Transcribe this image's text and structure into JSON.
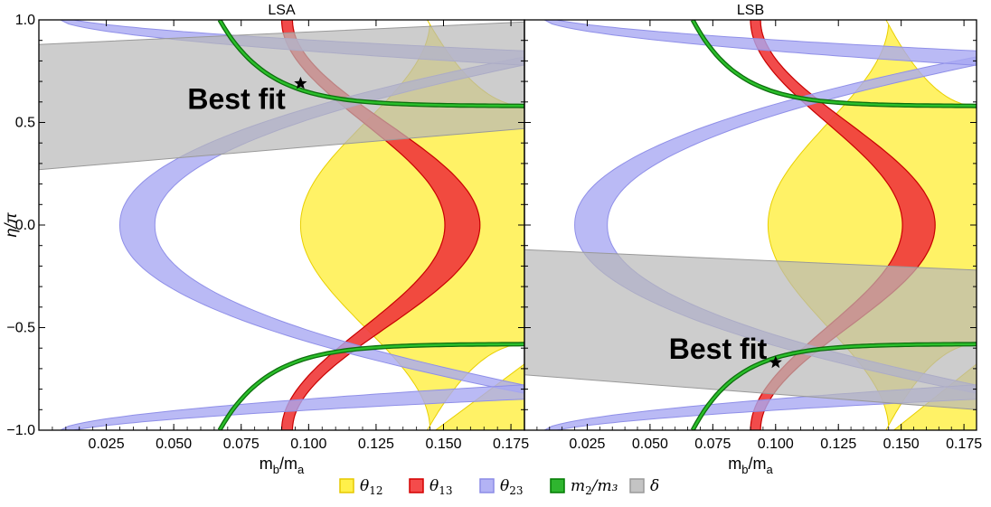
{
  "chart_data": [
    {
      "type": "area",
      "title": "LSA",
      "xlabel": "m_b/m_a",
      "ylabel": "η/π",
      "xlim": [
        0.0,
        0.18
      ],
      "ylim": [
        -1.0,
        1.0
      ],
      "xticks": [
        "0.025",
        "0.050",
        "0.075",
        "0.100",
        "0.125",
        "0.150",
        "0.175"
      ],
      "yticks": [
        "−1.0",
        "−0.5",
        "0.0",
        "0.5",
        "1.0"
      ],
      "annotation": "Best fit",
      "best_fit": {
        "x": 0.097,
        "y": 0.69
      },
      "regions": {
        "theta12": "yellow region right of x≈0.097–0.145, extending to x=0.18",
        "theta13": {
          "center_x_at_eta0": 0.157,
          "center_x_at_eta_pm1": 0.092,
          "width_x_min": 0.004,
          "width_x_max": 0.012
        },
        "theta23": "blue curved bands forming a C-shape with min x≈0.030 at η=0",
        "m2_over_m3": "green curves from (0.067,±1.0) asymptoting to η=±0.58 at x=0.18",
        "delta": {
          "left_top": 0.88,
          "left_bottom": 0.27,
          "right_top": 0.99,
          "right_bottom": 0.47
        }
      }
    },
    {
      "type": "area",
      "title": "LSB",
      "xlabel": "m_b/m_a",
      "ylabel": "",
      "xlim": [
        0.0,
        0.18
      ],
      "ylim": [
        -1.0,
        1.0
      ],
      "xticks": [
        "0.025",
        "0.050",
        "0.075",
        "0.100",
        "0.125",
        "0.150",
        "0.175"
      ],
      "annotation": "Best fit",
      "best_fit": {
        "x": 0.1,
        "y": -0.67
      },
      "regions": {
        "theta12": "yellow region right of x≈0.097–0.145, extending to x=0.18",
        "theta13": {
          "center_x_at_eta0": 0.157,
          "center_x_at_eta_pm1": 0.092,
          "width_x_min": 0.004,
          "width_x_max": 0.012
        },
        "theta23": "blue curved bands forming a C-shape with min x≈0.020 at η=0",
        "m2_over_m3": "green curves from (0.067,±1.0) asymptoting to η=±0.58 at x=0.18",
        "delta": {
          "left_top": -0.12,
          "left_bottom": -0.73,
          "right_top": -0.22,
          "right_bottom": -0.9
        }
      }
    }
  ],
  "legend": [
    {
      "sym": "θ",
      "sub": "12",
      "after": "",
      "fill": "#fff04a",
      "stroke": "#e6c800"
    },
    {
      "sym": "θ",
      "sub": "13",
      "after": "",
      "fill": "#f44b4b",
      "stroke": "#d40000"
    },
    {
      "sym": "θ",
      "sub": "23",
      "after": "",
      "fill": "#b3b3f5",
      "stroke": "#8c8ce6"
    },
    {
      "sym": "m",
      "sub": "2",
      "after": "/m₃",
      "fill": "#2fb52f",
      "stroke": "#007a00"
    },
    {
      "sym": "δ",
      "sub": "",
      "after": "",
      "fill": "#c4c4c4",
      "stroke": "#9a9a9a"
    }
  ],
  "colors": {
    "theta12": "#ffee33",
    "theta13": "#f03c3c",
    "theta23": "#a9a9f3",
    "m2m3": "#1fa01f",
    "delta": "#b8b8b8"
  }
}
